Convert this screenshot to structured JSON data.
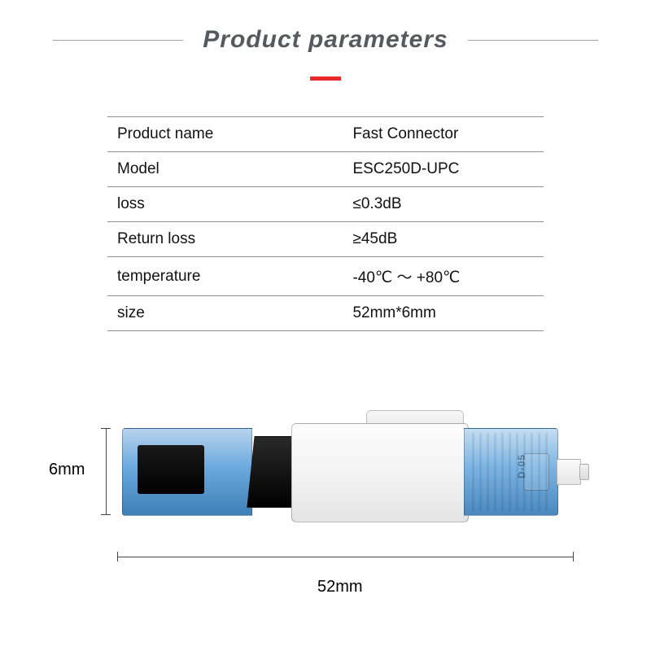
{
  "title": "Product parameters",
  "accent_color": "#e82a2a",
  "text_color": "#565a5e",
  "table_border_color": "#8f8f8f",
  "rows": [
    {
      "label": "Product name",
      "value": "Fast Connector"
    },
    {
      "label": "Model",
      "value": "ESC250D-UPC"
    },
    {
      "label": "loss",
      "value": "≤0.3dB"
    },
    {
      "label": "Return loss",
      "value": "≥45dB"
    },
    {
      "label": "temperature",
      "value": "-40℃  ～  +80℃"
    },
    {
      "label": "size",
      "value": "52mm*6mm"
    }
  ],
  "diagram": {
    "height_label": "6mm",
    "width_label": "52mm",
    "emboss_text": "D-05",
    "colors": {
      "blue_light": "#b8d3ee",
      "blue_mid": "#6aa9de",
      "blue_dark": "#3f7fb8",
      "black": "#000000",
      "white_body": "#f4f4f4",
      "dim_line": "#444444"
    }
  }
}
